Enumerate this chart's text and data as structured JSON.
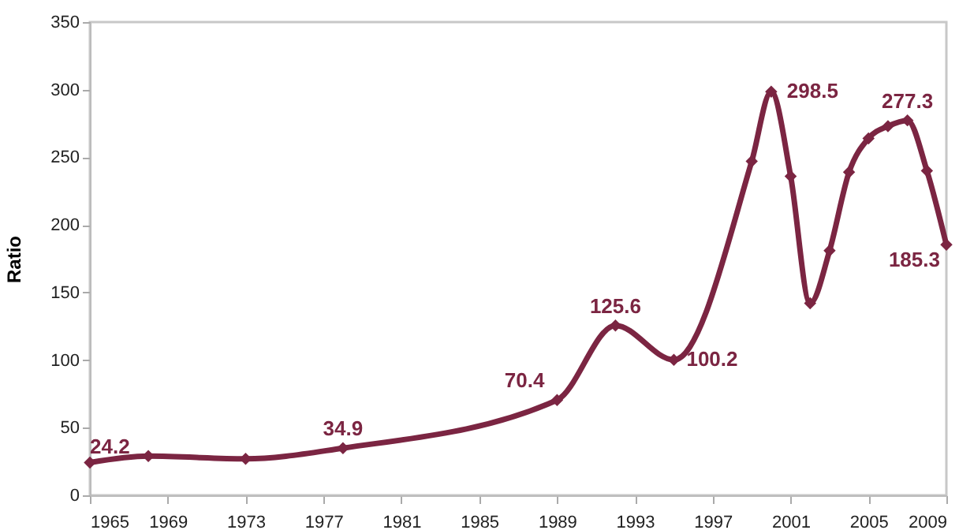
{
  "chart_data": {
    "type": "line",
    "ylabel": "Ratio",
    "x": [
      1965,
      1968,
      1973,
      1978,
      1989,
      1992,
      1995,
      1999,
      2000,
      2001,
      2002,
      2003,
      2004,
      2005,
      2006,
      2007,
      2008,
      2009
    ],
    "series": [
      {
        "color": "#7b2542",
        "values": [
          24.2,
          29,
          27,
          34.9,
          70.4,
          125.6,
          100.2,
          247,
          298.5,
          236,
          142,
          181,
          239,
          264,
          273,
          277.3,
          240,
          185.3
        ],
        "value_labels": [
          "24.2",
          null,
          null,
          "34.9",
          "70.4",
          "125.6",
          "100.2",
          null,
          "298.5",
          null,
          null,
          null,
          null,
          null,
          null,
          "277.3",
          null,
          "185.3"
        ]
      }
    ],
    "xlim": [
      1965,
      2009
    ],
    "xticks": [
      1965,
      1969,
      1973,
      1977,
      1981,
      1985,
      1989,
      1993,
      1997,
      2001,
      2005,
      2009
    ],
    "ylim": [
      0,
      350
    ],
    "yticks": [
      0,
      50,
      100,
      150,
      200,
      250,
      300,
      350
    ],
    "grid": false,
    "marker": "diamond",
    "line_style": "solid"
  }
}
